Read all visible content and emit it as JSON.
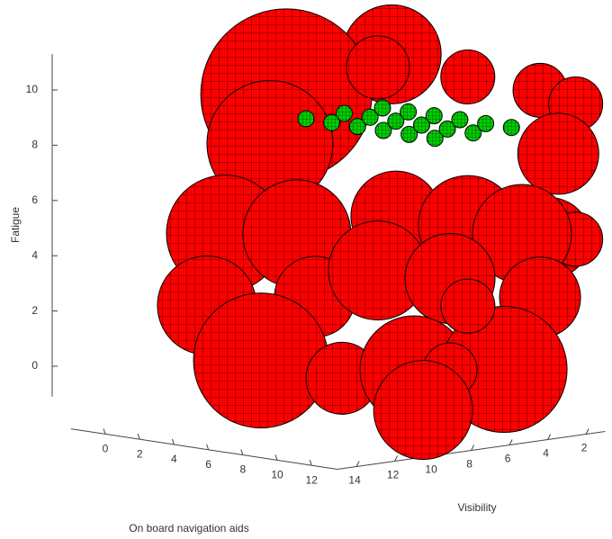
{
  "chart_data": {
    "type": "bubble3d",
    "xlabel": "On board navigation aids",
    "ylabel": "Visibility",
    "zlabel": "Fatigue",
    "xlim": [
      -2,
      13.5
    ],
    "ylim": [
      1,
      15
    ],
    "zlim": [
      -1.1,
      11.3
    ],
    "xticks": [
      0,
      2,
      4,
      6,
      8,
      10,
      12
    ],
    "yticks": [
      2,
      4,
      6,
      8,
      10,
      12,
      14
    ],
    "zticks": [
      0,
      2,
      4,
      6,
      8,
      10
    ],
    "series": [
      {
        "color": "#ff0000",
        "x": [
          8.87,
          2.74,
          8.07,
          13.3,
          11.94,
          12.9,
          1.79,
          13,
          12.5,
          12.9,
          1.4,
          3.36,
          9.12,
          9.97,
          12,
          0.35,
          4.41,
          8.07,
          10.04,
          11.94,
          1.27,
          5.98,
          10.17,
          10.96,
          11.08,
          12.27,
          10.7
        ],
        "y": [
          8,
          8,
          8,
          8,
          3,
          2,
          8,
          3,
          3,
          2,
          10,
          8,
          8,
          5,
          4,
          10,
          8,
          8,
          6,
          3,
          8,
          8,
          8,
          4,
          6,
          8,
          8
        ],
        "z": [
          12.8,
          10.77,
          12.25,
          12.4,
          11.3,
          10.8,
          8.9,
          9.1,
          6.0,
          5.9,
          5.8,
          5.78,
          6.97,
          6.43,
          6.2,
          3.1,
          3.6,
          4.9,
          4.6,
          3.8,
          1.0,
          0.8,
          1.5,
          1.2,
          3.7,
          1.7,
          0.1
        ],
        "r": [
          2.75,
          4.75,
          1.75,
          1.5,
          1.5,
          1.5,
          3.5,
          2.25,
          2.25,
          1.5,
          3.25,
          3,
          2.5,
          2.75,
          2.75,
          2.75,
          2.25,
          2.75,
          2.5,
          2.25,
          3.75,
          2,
          3,
          3.5,
          1.5,
          1.5,
          2.75
        ]
      },
      {
        "color": "#00cc00",
        "x": [
          5,
          6.5,
          8,
          9.5,
          11,
          12.5,
          5,
          6.5,
          8,
          9.5,
          11,
          12.5,
          5,
          6.5,
          8,
          9.5,
          11,
          12.5
        ],
        "y": [
          9,
          9,
          9,
          9,
          9,
          9,
          7,
          7,
          7,
          7,
          7,
          7,
          5,
          5,
          5,
          5,
          5,
          5
        ],
        "z": [
          10.2,
          10.2,
          10.2,
          10.2,
          10.2,
          10.2,
          10.2,
          10.2,
          10.2,
          10.2,
          10.2,
          10.2,
          10.2,
          10.2,
          10.2,
          10.2,
          10.2,
          10.2
        ],
        "r": [
          0.45,
          0.45,
          0.45,
          0.45,
          0.45,
          0.45,
          0.45,
          0.45,
          0.45,
          0.45,
          0.45,
          0.45,
          0.45,
          0.45,
          0.45,
          0.45,
          0.45,
          0.45
        ]
      }
    ]
  }
}
